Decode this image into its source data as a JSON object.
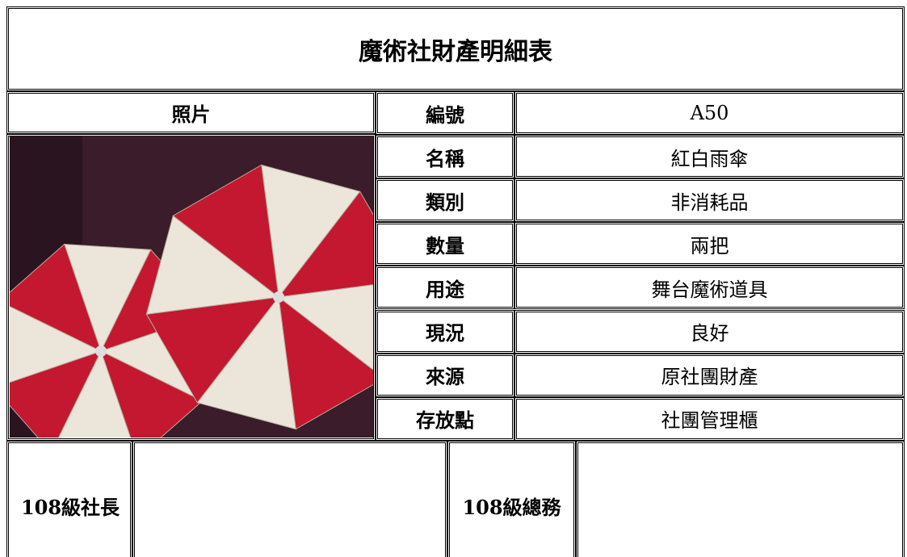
{
  "header": {
    "title": "魔術社財產明細表"
  },
  "table": {
    "photo_label": "照片",
    "rows": [
      [
        "編號",
        "A50"
      ],
      [
        "名稱",
        "紅白雨傘"
      ],
      [
        "類別",
        "非消耗品"
      ],
      [
        "數量",
        "兩把"
      ],
      [
        "用途",
        "舞台魔術道具"
      ],
      [
        "現況",
        "良好"
      ],
      [
        "來源",
        "原社團財產"
      ],
      [
        "存放點",
        "社團管理櫃"
      ]
    ]
  },
  "signatures": [
    {
      "label": "108級社長"
    },
    {
      "label": "108級總務"
    }
  ]
}
